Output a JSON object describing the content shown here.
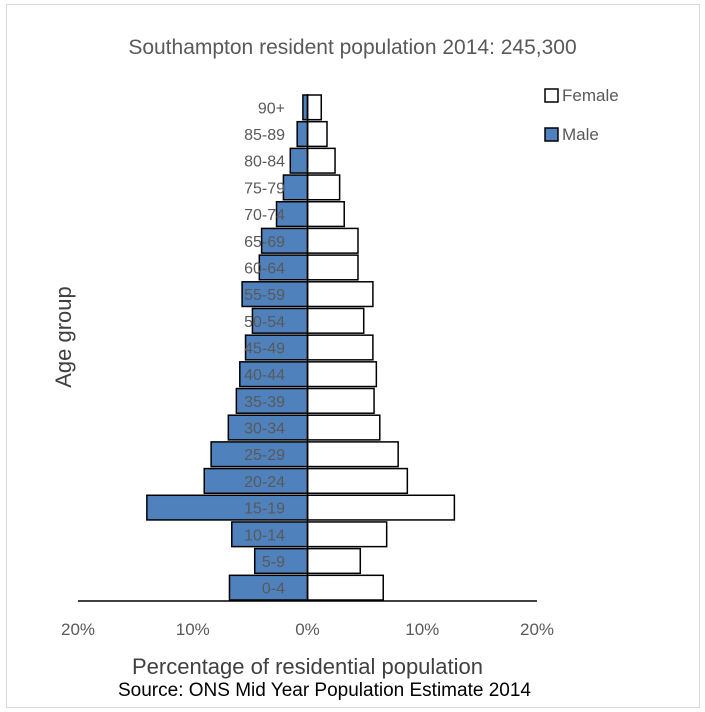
{
  "chart_data": {
    "type": "bar",
    "orientation": "horizontal",
    "title": "Southampton resident population 2014: 245,300",
    "xlabel": "Percentage of residential population",
    "ylabel": "Age group",
    "source": "Source: ONS Mid Year Population Estimate 2014",
    "categories": [
      "0-4",
      "5-9",
      "10-14",
      "15-19",
      "20-24",
      "25-29",
      "30-34",
      "35-39",
      "40-44",
      "45-49",
      "50-54",
      "55-59",
      "60-64",
      "65-69",
      "70-74",
      "75-79",
      "80-84",
      "85-89",
      "90+"
    ],
    "series": [
      {
        "name": "Female",
        "color": "#ffffff",
        "values": [
          6.6,
          4.6,
          6.9,
          12.8,
          8.7,
          7.9,
          6.3,
          5.8,
          6.0,
          5.7,
          4.9,
          5.7,
          4.4,
          4.4,
          3.2,
          2.8,
          2.4,
          1.7,
          1.2
        ]
      },
      {
        "name": "Male",
        "color": "#4f81bd",
        "values": [
          -6.8,
          -4.6,
          -6.6,
          -14.0,
          -9.0,
          -8.4,
          -6.9,
          -6.2,
          -5.9,
          -5.4,
          -4.8,
          -5.7,
          -4.2,
          -4.0,
          -2.7,
          -2.1,
          -1.5,
          -0.9,
          -0.4
        ]
      }
    ],
    "xlim": [
      -20,
      20
    ],
    "xticks": [
      -20,
      -10,
      0,
      10,
      20
    ],
    "xtick_labels": [
      "20%",
      "10%",
      "0%",
      "10%",
      "20%"
    ],
    "legend_position": "top-right",
    "grid": false
  }
}
